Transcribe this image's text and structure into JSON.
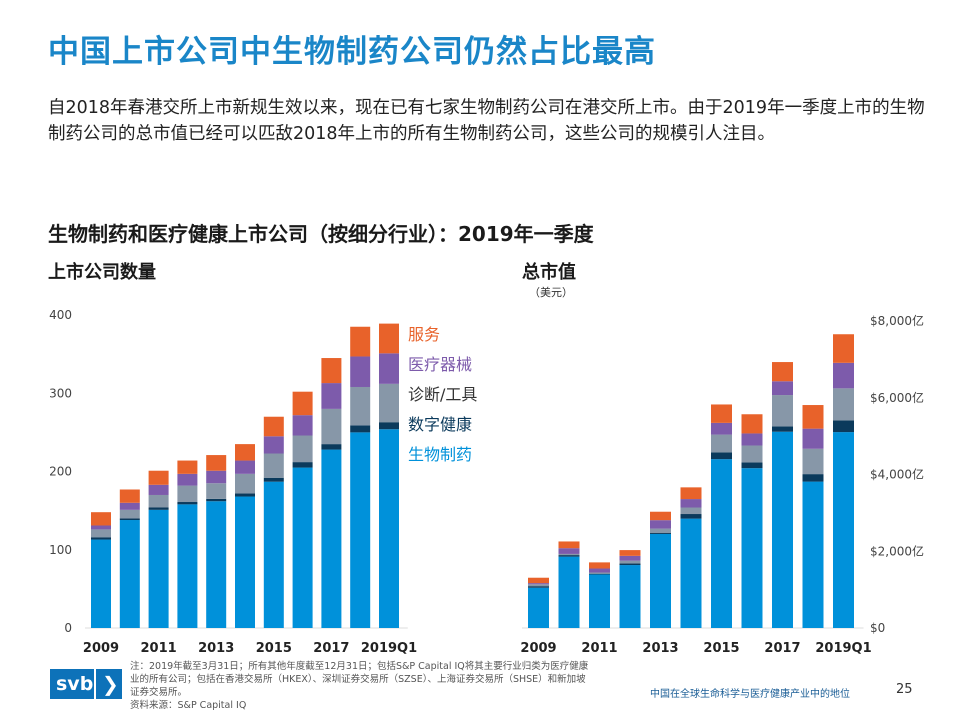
{
  "title": "中国上市公司中生物制药公司仍然占比最高",
  "intro": "自2018年春港交所上市新规生效以来，现在已有七家生物制药公司在港交所上市。由于2019年一季度上市的生物制药公司的总市值已经可以匹敌2018年上市的所有生物制药公司，这些公司的规模引人注目。",
  "subtitle": "生物制药和医疗健康上市公司（按细分行业）：2019年一季度",
  "colors": {
    "title": "#1a86c8",
    "生物制药": "#0091da",
    "数字健康": "#0b3a5c",
    "诊断/工具": "#8797a8",
    "医疗器械": "#7d5bab",
    "服务": "#e8622a"
  },
  "legend": [
    {
      "label": "服务",
      "color": "#e8622a"
    },
    {
      "label": "医疗器械",
      "color": "#7d5bab"
    },
    {
      "label": "诊断/工具",
      "color": "#333333"
    },
    {
      "label": "数字健康",
      "color": "#0b3a5c"
    },
    {
      "label": "生物制药",
      "color": "#0091da"
    }
  ],
  "chart_data": [
    {
      "type": "bar",
      "stacked": true,
      "title": "上市公司数量",
      "categories": [
        "2009",
        "2010",
        "2011",
        "2012",
        "2013",
        "2014",
        "2015",
        "2016",
        "2017",
        "2018",
        "2019Q1"
      ],
      "x_tick_labels": [
        "2009",
        "2011",
        "2013",
        "2015",
        "2017",
        "2019Q1"
      ],
      "ylim": [
        0,
        400
      ],
      "y_ticks": [
        0,
        100,
        200,
        300,
        400
      ],
      "y_tick_labels": [
        "0",
        "100",
        "200",
        "300",
        "400"
      ],
      "y_axis_side": "left",
      "legend_position": "right",
      "series": [
        {
          "name": "生物制药",
          "values": [
            113,
            138,
            151,
            158,
            162,
            168,
            187,
            205,
            228,
            250,
            254
          ]
        },
        {
          "name": "数字健康",
          "values": [
            3,
            2,
            3,
            3,
            3,
            4,
            5,
            7,
            7,
            9,
            9
          ]
        },
        {
          "name": "诊断/工具",
          "values": [
            10,
            11,
            16,
            21,
            20,
            25,
            31,
            34,
            45,
            49,
            49
          ]
        },
        {
          "name": "医疗器械",
          "values": [
            5,
            9,
            13,
            15,
            16,
            17,
            22,
            26,
            33,
            39,
            39
          ]
        },
        {
          "name": "服务",
          "values": [
            17,
            17,
            18,
            17,
            20,
            21,
            25,
            30,
            32,
            38,
            38
          ]
        }
      ]
    },
    {
      "type": "bar",
      "stacked": true,
      "title": "总市值",
      "ylabel": "（美元）",
      "categories": [
        "2009",
        "2010",
        "2011",
        "2012",
        "2013",
        "2014",
        "2015",
        "2016",
        "2017",
        "2018",
        "2019Q1"
      ],
      "x_tick_labels": [
        "2009",
        "2011",
        "2013",
        "2015",
        "2017",
        "2019Q1"
      ],
      "ylim": [
        0,
        8000
      ],
      "y_ticks": [
        0,
        2000,
        4000,
        6000,
        8000
      ],
      "y_tick_labels": [
        "$0",
        "$2,000亿",
        "$4,000亿",
        "$6,000亿",
        "$8,000亿"
      ],
      "y_axis_side": "right",
      "series": [
        {
          "name": "生物制药",
          "values": [
            1050,
            1860,
            1395,
            1640,
            2450,
            2850,
            4400,
            4165,
            5115,
            3815,
            5105
          ]
        },
        {
          "name": "数字健康",
          "values": [
            40,
            40,
            20,
            40,
            25,
            120,
            175,
            150,
            140,
            195,
            305
          ]
        },
        {
          "name": "诊断/工具",
          "values": [
            50,
            30,
            30,
            75,
            115,
            170,
            465,
            440,
            815,
            660,
            835
          ]
        },
        {
          "name": "医疗器械",
          "values": [
            30,
            150,
            105,
            125,
            220,
            220,
            305,
            315,
            360,
            525,
            665
          ]
        },
        {
          "name": "服务",
          "values": [
            140,
            175,
            160,
            150,
            220,
            305,
            480,
            500,
            500,
            615,
            745
          ]
        }
      ]
    }
  ],
  "footnote": "注：2019年截至3月31日；所有其他年度截至12月31日；包括S&P Capital IQ将其主要行业归类为医疗健康业的所有公司；包括在香港交易所（HKEX）、深圳证券交易所（SZSE）、上海证券交易所（SHSE）和新加坡证券交易所。",
  "source": "资料来源：S&P Capital IQ",
  "logo": "svb",
  "footer_title": "中国在全球生命科学与医疗健康产业中的地位",
  "page_number": "25"
}
